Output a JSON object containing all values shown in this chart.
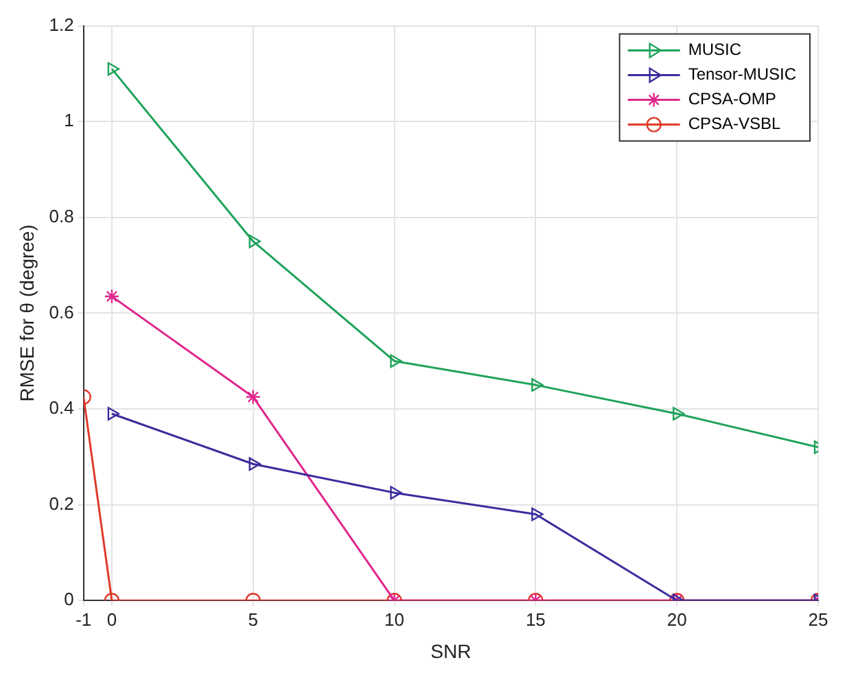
{
  "chart_data": {
    "type": "line",
    "xlabel": "SNR",
    "ylabel": "RMSE for θ (degree)",
    "xlim": [
      -1,
      25
    ],
    "xticks": [
      -1,
      0,
      5,
      10,
      15,
      20,
      25
    ],
    "ylim": [
      0,
      1.2
    ],
    "yticks": [
      0,
      0.2,
      0.4,
      0.6,
      0.8,
      1,
      1.2
    ],
    "grid": true,
    "legend": "top right",
    "line_style": "solid",
    "series": [
      {
        "name": "MUSIC",
        "color": "#1fa25a",
        "marker": "triangle",
        "x": [
          0,
          5,
          10,
          15,
          20,
          25
        ],
        "values": [
          1.11,
          0.75,
          0.5,
          0.45,
          0.39,
          0.32
        ]
      },
      {
        "name": "Tensor-MUSIC",
        "color": "#3a2c9c",
        "marker": "triangle",
        "x": [
          0,
          5,
          10,
          15,
          20,
          25
        ],
        "values": [
          0.39,
          0.285,
          0.225,
          0.18,
          0,
          0
        ]
      },
      {
        "name": "CPSA-OMP",
        "color": "#e0268c",
        "marker": "cross",
        "x": [
          0,
          5,
          10,
          15,
          20,
          25
        ],
        "values": [
          0.635,
          0.425,
          0,
          0,
          0,
          0
        ]
      },
      {
        "name": "CPSA-VSBL",
        "color": "#e03a2a",
        "marker": "circle",
        "x": [
          -1,
          0,
          5,
          10,
          15,
          20,
          25
        ],
        "values": [
          0.425,
          0,
          0,
          0,
          0,
          0,
          0
        ]
      }
    ]
  }
}
